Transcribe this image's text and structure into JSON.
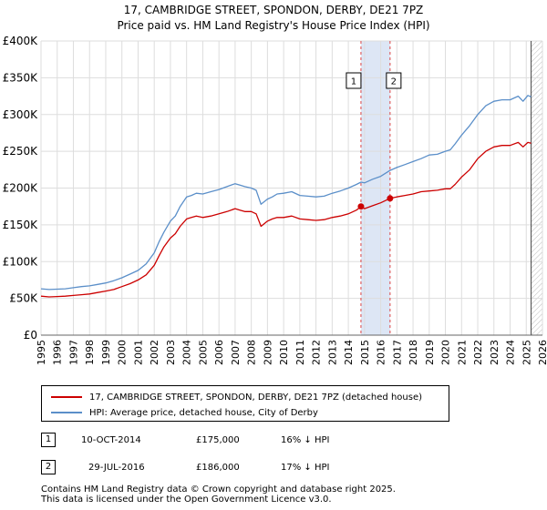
{
  "title_line1": "17, CAMBRIDGE STREET, SPONDON, DERBY, DE21 7PZ",
  "title_line2": "Price paid vs. HM Land Registry's House Price Index (HPI)",
  "chart_data": {
    "type": "line",
    "xlim": [
      1995,
      2026
    ],
    "ylim": [
      0,
      400000
    ],
    "x_ticks": [
      1995,
      1996,
      1997,
      1998,
      1999,
      2000,
      2001,
      2002,
      2003,
      2004,
      2005,
      2006,
      2007,
      2008,
      2009,
      2010,
      2011,
      2012,
      2013,
      2014,
      2015,
      2016,
      2017,
      2018,
      2019,
      2020,
      2021,
      2022,
      2023,
      2024,
      2025,
      2026
    ],
    "y_ticks": [
      0,
      50000,
      100000,
      150000,
      200000,
      250000,
      300000,
      350000,
      400000
    ],
    "y_tick_labels": [
      "£0",
      "£50K",
      "£100K",
      "£150K",
      "£200K",
      "£250K",
      "£300K",
      "£350K",
      "£400K"
    ],
    "grid": true,
    "shaded_band": [
      2014.78,
      2016.58
    ],
    "data_end_x": 2025.3,
    "series": [
      {
        "name": "17, CAMBRIDGE STREET, SPONDON, DERBY, DE21 7PZ (detached house)",
        "color": "#cc0000",
        "x": [
          1995,
          1995.5,
          1996,
          1996.5,
          1997,
          1997.5,
          1998,
          1998.5,
          1999,
          1999.5,
          2000,
          2000.5,
          2001,
          2001.5,
          2002,
          2002.3,
          2002.6,
          2003,
          2003.3,
          2003.6,
          2004,
          2004.3,
          2004.6,
          2005,
          2005.5,
          2006,
          2006.5,
          2007,
          2007.3,
          2007.6,
          2008,
          2008.3,
          2008.6,
          2009,
          2009.3,
          2009.6,
          2010,
          2010.5,
          2011,
          2011.5,
          2012,
          2012.5,
          2013,
          2013.5,
          2014,
          2014.5,
          2014.78,
          2015,
          2015.5,
          2016,
          2016.58,
          2017,
          2017.5,
          2018,
          2018.5,
          2019,
          2019.5,
          2020,
          2020.3,
          2020.6,
          2021,
          2021.5,
          2022,
          2022.5,
          2023,
          2023.5,
          2024,
          2024.5,
          2024.8,
          2025.1,
          2025.3
        ],
        "y": [
          53000,
          52000,
          52500,
          53000,
          54000,
          55000,
          56000,
          58000,
          60000,
          62000,
          66000,
          70000,
          75000,
          82000,
          95000,
          108000,
          120000,
          132000,
          138000,
          148000,
          158000,
          160000,
          162000,
          160000,
          162000,
          165000,
          168000,
          172000,
          170000,
          168000,
          168000,
          165000,
          148000,
          155000,
          158000,
          160000,
          160000,
          162000,
          158000,
          157000,
          156000,
          157000,
          160000,
          162000,
          165000,
          170000,
          175000,
          172000,
          176000,
          180000,
          186000,
          188000,
          190000,
          192000,
          195000,
          196000,
          197000,
          199000,
          199000,
          205000,
          215000,
          225000,
          240000,
          250000,
          256000,
          258000,
          258000,
          262000,
          256000,
          262000,
          261000
        ]
      },
      {
        "name": "HPI: Average price, detached house, City of Derby",
        "color": "#5b8fc9",
        "x": [
          1995,
          1995.5,
          1996,
          1996.5,
          1997,
          1997.5,
          1998,
          1998.5,
          1999,
          1999.5,
          2000,
          2000.5,
          2001,
          2001.5,
          2002,
          2002.3,
          2002.6,
          2003,
          2003.3,
          2003.6,
          2004,
          2004.3,
          2004.6,
          2005,
          2005.5,
          2006,
          2006.5,
          2007,
          2007.3,
          2007.6,
          2008,
          2008.3,
          2008.6,
          2009,
          2009.3,
          2009.6,
          2010,
          2010.5,
          2011,
          2011.5,
          2012,
          2012.5,
          2013,
          2013.5,
          2014,
          2014.5,
          2014.78,
          2015,
          2015.5,
          2016,
          2016.58,
          2017,
          2017.5,
          2018,
          2018.5,
          2019,
          2019.5,
          2020,
          2020.3,
          2020.6,
          2021,
          2021.5,
          2022,
          2022.5,
          2023,
          2023.5,
          2024,
          2024.5,
          2024.8,
          2025.1,
          2025.3
        ],
        "y": [
          63000,
          62000,
          62500,
          63000,
          64500,
          66000,
          67000,
          69000,
          71000,
          74000,
          78000,
          83000,
          88000,
          97000,
          112000,
          127000,
          140000,
          155000,
          162000,
          175000,
          188000,
          190000,
          193000,
          192000,
          195000,
          198000,
          202000,
          206000,
          204000,
          202000,
          200000,
          197000,
          178000,
          185000,
          188000,
          192000,
          193000,
          195000,
          190000,
          189000,
          188000,
          189000,
          193000,
          196000,
          200000,
          205000,
          208000,
          207000,
          212000,
          216000,
          224000,
          228000,
          232000,
          236000,
          240000,
          245000,
          246000,
          250000,
          252000,
          260000,
          272000,
          285000,
          300000,
          312000,
          318000,
          320000,
          320000,
          325000,
          318000,
          326000,
          324000
        ]
      }
    ],
    "markers": [
      {
        "label": "1",
        "x": 2014.78,
        "y": 175000
      },
      {
        "label": "2",
        "x": 2016.58,
        "y": 186000
      }
    ]
  },
  "legend": {
    "red_label": "17, CAMBRIDGE STREET, SPONDON, DERBY, DE21 7PZ (detached house)",
    "blue_label": "HPI: Average price, detached house, City of Derby"
  },
  "transactions": [
    {
      "num": "1",
      "date": "10-OCT-2014",
      "price": "£175,000",
      "hpi": "16% ↓ HPI"
    },
    {
      "num": "2",
      "date": "29-JUL-2016",
      "price": "£186,000",
      "hpi": "17% ↓ HPI"
    }
  ],
  "footer_line1": "Contains HM Land Registry data © Crown copyright and database right 2025.",
  "footer_line2": "This data is licensed under the Open Government Licence v3.0."
}
